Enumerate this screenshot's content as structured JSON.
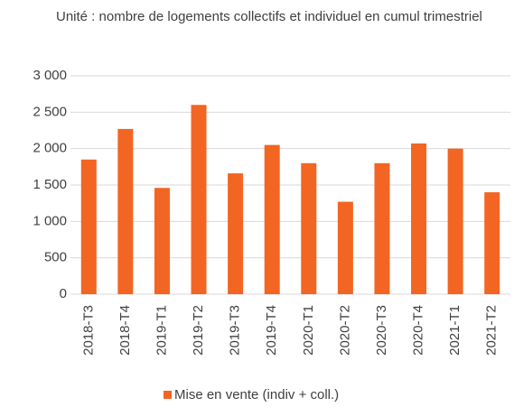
{
  "chart_data": {
    "type": "bar",
    "subtitle": "Unité : nombre de logements collectifs et individuel en cumul trimestriel",
    "categories": [
      "2018-T3",
      "2018-T4",
      "2019-T1",
      "2019-T2",
      "2019-T3",
      "2019-T4",
      "2020-T1",
      "2020-T2",
      "2020-T3",
      "2020-T4",
      "2021-T1",
      "2021-T2"
    ],
    "series": [
      {
        "name": "Mise en vente (indiv + coll.)",
        "color": "#f26522",
        "values": [
          1850,
          2270,
          1460,
          2600,
          1660,
          2050,
          1800,
          1270,
          1800,
          2070,
          2000,
          1400
        ]
      }
    ],
    "ylim": [
      0,
      3000
    ],
    "yticks": [
      0,
      500,
      {
        "value": 1000,
        "label": "1 000"
      },
      {
        "value": 1500,
        "label": "1 500"
      },
      {
        "value": 2000,
        "label": "2 000"
      },
      {
        "value": 2500,
        "label": "2 500"
      },
      {
        "value": 3000,
        "label": "3 000"
      }
    ],
    "grid": true,
    "legend": "bottom"
  }
}
